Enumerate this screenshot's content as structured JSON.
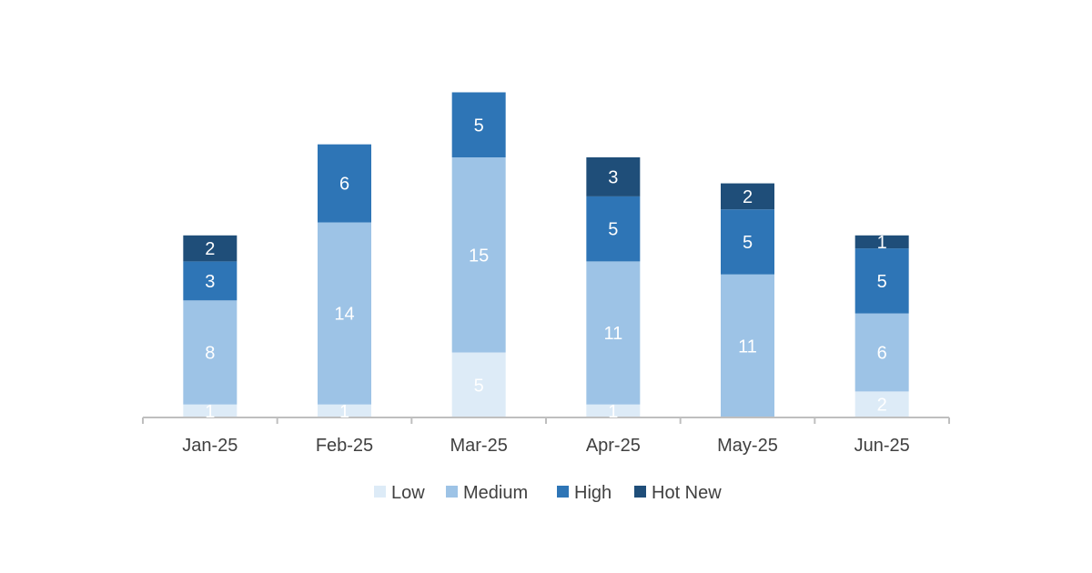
{
  "chart_data": {
    "type": "bar",
    "stacked": true,
    "title": "",
    "xlabel": "",
    "ylabel": "",
    "categories": [
      "Jan-25",
      "Feb-25",
      "Mar-25",
      "Apr-25",
      "May-25",
      "Jun-25"
    ],
    "series": [
      {
        "name": "Low",
        "color": "#ddebf7",
        "values": [
          1,
          1,
          5,
          1,
          0,
          2
        ]
      },
      {
        "name": "Medium",
        "color": "#9dc3e6",
        "values": [
          8,
          14,
          15,
          11,
          11,
          6
        ]
      },
      {
        "name": "High",
        "color": "#2e75b6",
        "values": [
          3,
          6,
          5,
          5,
          5,
          5
        ]
      },
      {
        "name": "Hot New",
        "color": "#1f4e79",
        "values": [
          2,
          0,
          0,
          3,
          2,
          1
        ]
      }
    ],
    "ylim": [
      0,
      25
    ],
    "grid": false,
    "legend_position": "bottom"
  }
}
